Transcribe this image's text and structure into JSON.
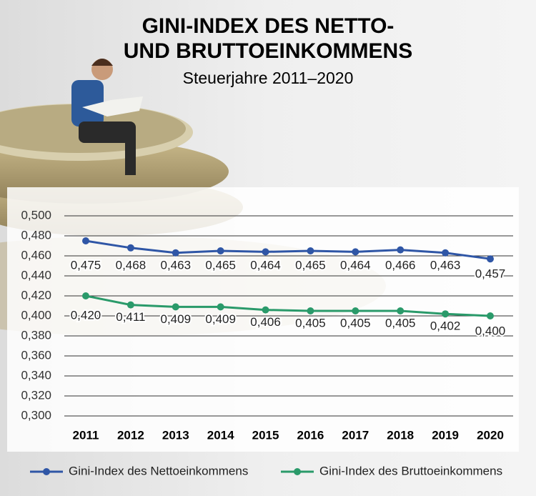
{
  "chart_data": {
    "type": "line",
    "title": [
      "GINI-INDEX DES NETTO-",
      "UND BRUTTOEINKOMMENS"
    ],
    "subtitle": "Steuerjahre 2011–2020",
    "categories": [
      "2011",
      "2012",
      "2013",
      "2014",
      "2015",
      "2016",
      "2017",
      "2018",
      "2019",
      "2020"
    ],
    "series": [
      {
        "name": "Gini-Index des Nettoeinkommens",
        "color": "#2f56a6",
        "values": [
          0.475,
          0.468,
          0.463,
          0.465,
          0.464,
          0.465,
          0.464,
          0.466,
          0.463,
          0.457
        ],
        "value_labels": [
          "0,475",
          "0,468",
          "0,463",
          "0,465",
          "0,464",
          "0,465",
          "0,464",
          "0,466",
          "0,463",
          "0,457"
        ]
      },
      {
        "name": "Gini-Index des Bruttoeinkommens",
        "color": "#2a9a6a",
        "values": [
          0.42,
          0.411,
          0.409,
          0.409,
          0.406,
          0.405,
          0.405,
          0.405,
          0.402,
          0.4
        ],
        "value_labels": [
          "0,420",
          "0,411",
          "0,409",
          "0,409",
          "0,406",
          "0,405",
          "0,405",
          "0,405",
          "0,402",
          "0,400"
        ]
      }
    ],
    "ylim": [
      0.3,
      0.5
    ],
    "yticks": [
      {
        "value": 0.3,
        "label": "0,300"
      },
      {
        "value": 0.32,
        "label": "0,320"
      },
      {
        "value": 0.34,
        "label": "0,340"
      },
      {
        "value": 0.36,
        "label": "0,360"
      },
      {
        "value": 0.38,
        "label": "0,380"
      },
      {
        "value": 0.4,
        "label": "0,400"
      },
      {
        "value": 0.42,
        "label": "0,420"
      },
      {
        "value": 0.44,
        "label": "0,440"
      },
      {
        "value": 0.46,
        "label": "0,460"
      },
      {
        "value": 0.48,
        "label": "0,480"
      },
      {
        "value": 0.5,
        "label": "0,500"
      }
    ],
    "grid": true
  }
}
